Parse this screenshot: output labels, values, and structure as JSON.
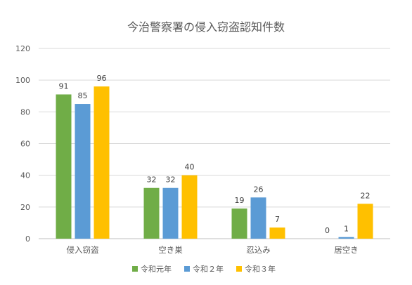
{
  "chart_data": {
    "type": "bar",
    "title": "今治警察署の侵入窃盗認知件数",
    "xlabel": "",
    "ylabel": "",
    "categories": [
      "侵入窃盗",
      "空き巣",
      "忍込み",
      "居空き"
    ],
    "series": [
      {
        "name": "令和元年",
        "color": "#70ad47",
        "values": [
          91,
          32,
          19,
          0
        ]
      },
      {
        "name": "令和２年",
        "color": "#5b9bd5",
        "values": [
          85,
          32,
          26,
          1
        ]
      },
      {
        "name": "令和３年",
        "color": "#ffc000",
        "values": [
          96,
          40,
          7,
          22
        ]
      }
    ],
    "ylim": [
      0,
      120
    ],
    "yticks": [
      0,
      20,
      40,
      60,
      80,
      100,
      120
    ],
    "grid": true,
    "legend": "bottom"
  }
}
